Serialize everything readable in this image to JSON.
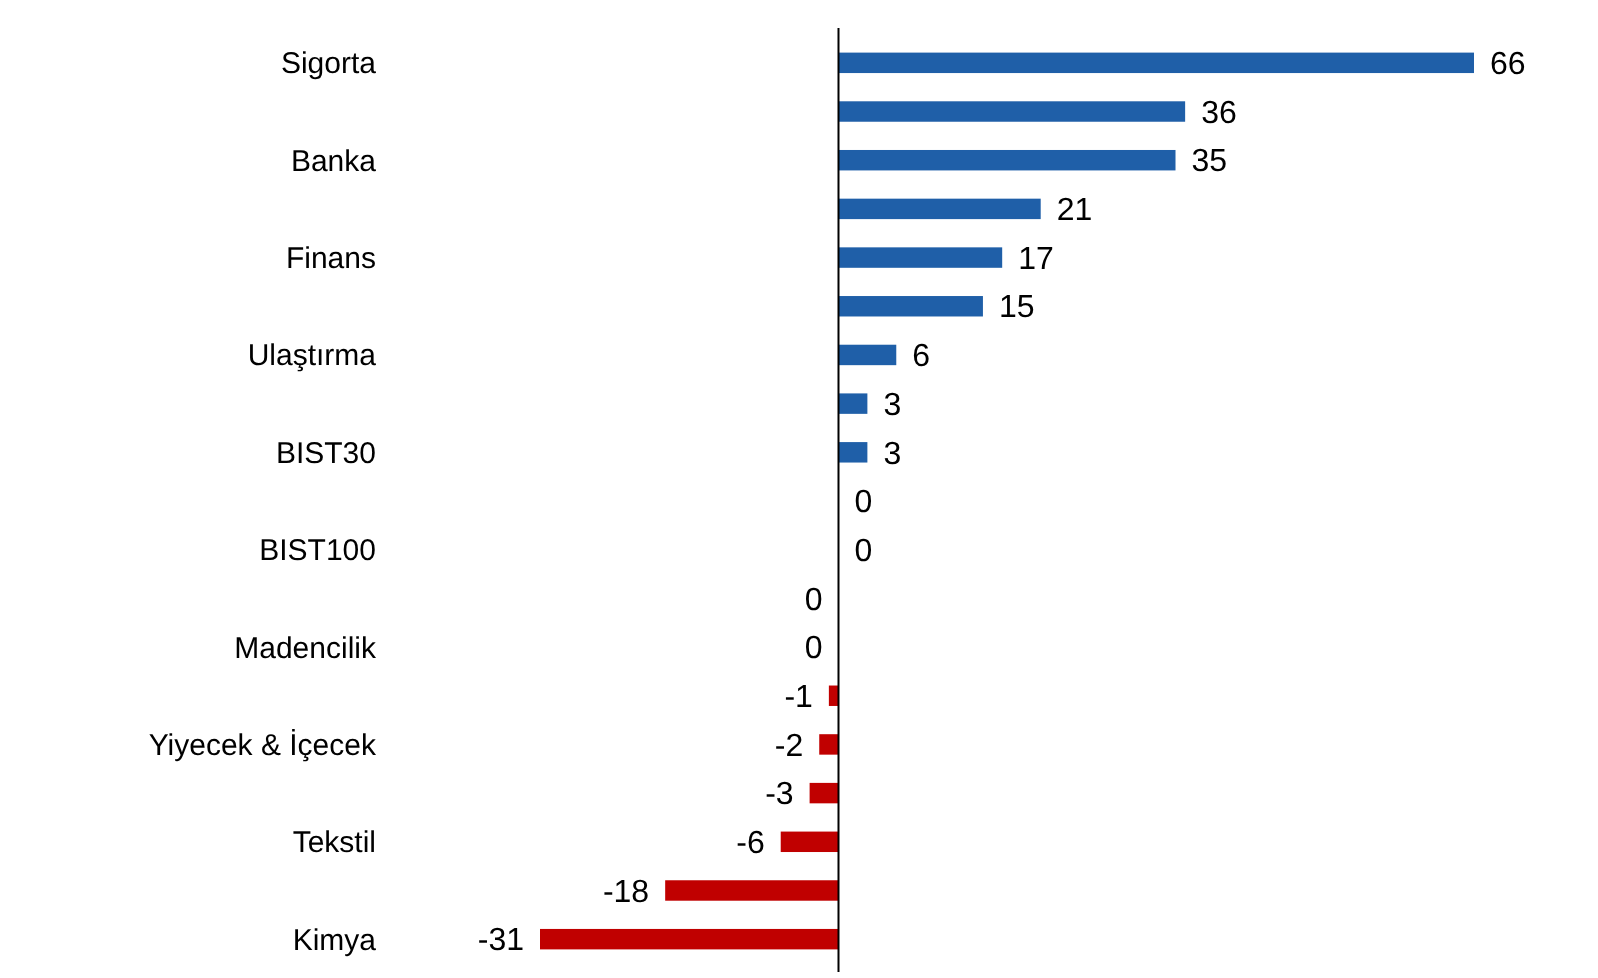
{
  "chart_data": {
    "type": "bar",
    "orientation": "horizontal",
    "data_labels": true,
    "categories": [
      "Sigorta",
      null,
      "Banka",
      null,
      "Finans",
      null,
      "Ulaştırma",
      null,
      "BIST30",
      null,
      "BIST100",
      null,
      "Madencilik",
      null,
      "Yiyecek & İçecek",
      null,
      "Tekstil",
      null,
      "Kimya"
    ],
    "values": [
      66,
      36,
      35,
      21,
      17,
      15,
      6,
      3,
      3,
      0,
      0,
      0,
      0,
      -1,
      -2,
      -3,
      -6,
      -18,
      -31
    ],
    "colors": [
      "#1f5fa8",
      "#1f5fa8",
      "#1f5fa8",
      "#1f5fa8",
      "#1f5fa8",
      "#1f5fa8",
      "#1f5fa8",
      "#1f5fa8",
      "#1f5fa8",
      "#1f5fa8",
      "#1f5fa8",
      "#c00000",
      "#c00000",
      "#c00000",
      "#c00000",
      "#c00000",
      "#c00000",
      "#c00000",
      "#c00000"
    ]
  }
}
